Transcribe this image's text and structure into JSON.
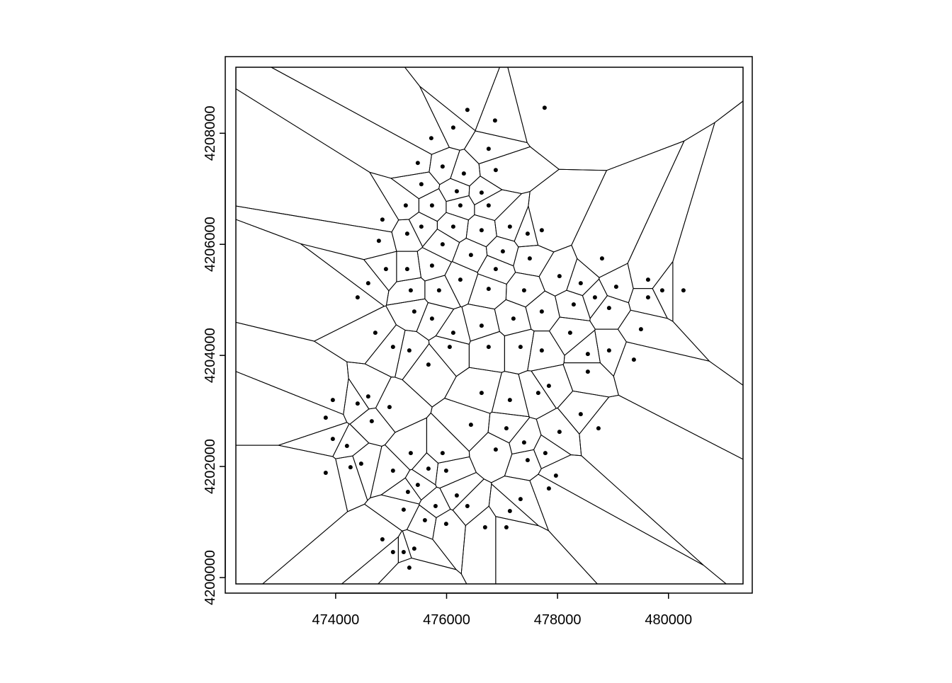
{
  "chart_data": {
    "type": "scatter",
    "voronoi": true,
    "color": "#000000",
    "x": [
      476375,
      476873,
      477767,
      475724,
      476120,
      476758,
      475928,
      476311,
      475481,
      476886,
      475545,
      476184,
      476631,
      475264,
      475737,
      476248,
      476758,
      477141,
      476631,
      476120,
      475545,
      474843,
      474779,
      475290,
      475928,
      476439,
      477014,
      477461,
      477716,
      477499,
      476886,
      476248,
      475737,
      475290,
      474907,
      474587,
      475354,
      475864,
      476758,
      477397,
      478035,
      478418,
      478802,
      479057,
      479632,
      479887,
      480270,
      479632,
      478674,
      478929,
      478291,
      477716,
      477205,
      476631,
      476120,
      475737,
      475417,
      474715,
      474396,
      475034,
      475328,
      475673,
      476056,
      476758,
      477333,
      477716,
      478227,
      478546,
      478929,
      479376,
      479504,
      478546,
      476631,
      477141,
      477652,
      477844,
      474971,
      474396,
      473949,
      473821,
      474651,
      476439,
      477078,
      477397,
      478035,
      478418,
      478738,
      473949,
      474204,
      474268,
      473821,
      474460,
      475354,
      475928,
      475992,
      476886,
      477461,
      477780,
      477971,
      477844,
      475034,
      475481,
      475673,
      476184,
      475801,
      476375,
      475992,
      476694,
      477078,
      477141,
      477333,
      474843,
      475034,
      475226,
      475417,
      475328,
      475226,
      475609,
      475303,
      474587
    ],
    "y": [
      4208421,
      4208230,
      4208459,
      4207912,
      4208103,
      4207720,
      4207402,
      4207275,
      4207466,
      4207338,
      4207083,
      4206956,
      4206931,
      4206701,
      4206701,
      4206701,
      4206701,
      4206319,
      4206255,
      4206319,
      4206319,
      4206446,
      4206064,
      4206192,
      4206001,
      4205809,
      4205873,
      4206192,
      4206255,
      4205746,
      4205555,
      4205364,
      4205618,
      4205555,
      4205555,
      4205300,
      4205172,
      4205172,
      4205198,
      4205172,
      4205427,
      4205300,
      4205746,
      4205236,
      4205364,
      4205172,
      4205172,
      4205045,
      4205045,
      4204854,
      4204918,
      4204790,
      4204663,
      4204535,
      4204408,
      4204663,
      4204790,
      4204408,
      4205045,
      4204153,
      4204090,
      4203835,
      4204153,
      4204153,
      4204153,
      4204090,
      4204408,
      4204026,
      4204090,
      4203924,
      4204472,
      4203707,
      4203325,
      4203198,
      4203325,
      4203453,
      4203070,
      4203134,
      4203198,
      4202879,
      4202816,
      4202752,
      4202688,
      4202433,
      4202624,
      4202943,
      4202688,
      4202497,
      4202370,
      4201987,
      4201886,
      4202051,
      4202242,
      4202242,
      4201924,
      4202306,
      4202115,
      4202242,
      4201835,
      4201605,
      4201924,
      4201669,
      4201962,
      4201478,
      4201287,
      4201287,
      4200968,
      4200905,
      4200905,
      4201198,
      4201414,
      4200688,
      4200459,
      4200459,
      4200522,
      4200178,
      4201223,
      4201032,
      4201542,
      4203261
    ],
    "xlim": [
      472010,
      481510
    ],
    "ylim": [
      4199720,
      4209380
    ],
    "xticks": [
      474000,
      476000,
      478000,
      480000
    ],
    "yticks": [
      4200000,
      4202000,
      4204000,
      4206000,
      4208000
    ]
  }
}
